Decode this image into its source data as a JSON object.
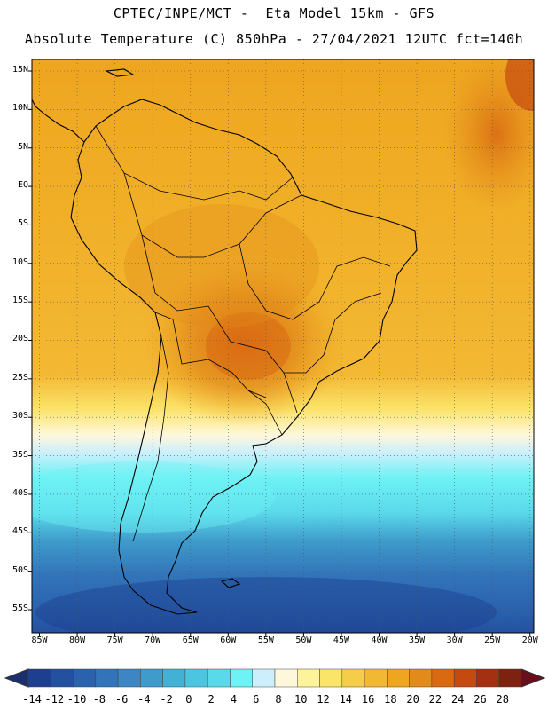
{
  "header": {
    "title_line1": "CPTEC/INPE/MCT -  Eta Model 15km - GFS",
    "title_line2": "Absolute Temperature (C) 850hPa - 27/04/2021 12UTC fct=140h"
  },
  "map": {
    "lat_labels": [
      "15N",
      "10N",
      "5N",
      "EQ",
      "5S",
      "10S",
      "15S",
      "20S",
      "25S",
      "30S",
      "35S",
      "40S",
      "45S",
      "50S",
      "55S"
    ],
    "lon_labels": [
      "85W",
      "80W",
      "75W",
      "70W",
      "65W",
      "60W",
      "55W",
      "50W",
      "45W",
      "40W",
      "35W",
      "30W",
      "25W",
      "20W"
    ],
    "lat_values": [
      15,
      10,
      5,
      0,
      -5,
      -10,
      -15,
      -20,
      -25,
      -30,
      -35,
      -40,
      -45,
      -50,
      -55
    ],
    "lon_values": [
      -85,
      -80,
      -75,
      -70,
      -65,
      -60,
      -55,
      -50,
      -45,
      -40,
      -35,
      -30,
      -25,
      -20
    ],
    "lat_range": [
      -58,
      16.5
    ],
    "lon_range": [
      -86,
      -19.5
    ],
    "temperature_bands": [
      {
        "lat_from": 16.5,
        "lat_to": 8,
        "range_c": "18 to 20"
      },
      {
        "lat_from": 8,
        "lat_to": -29,
        "range_c": "16 to 18"
      },
      {
        "lat_from": -29,
        "lat_to": -33,
        "range_c": "8 to 12"
      },
      {
        "lat_from": -33,
        "lat_to": -36,
        "range_c": "4 to 6"
      },
      {
        "lat_from": -36,
        "lat_to": -45,
        "range_c": "0 to 4"
      },
      {
        "lat_from": -45,
        "lat_to": -52,
        "range_c": "-6 to -2"
      },
      {
        "lat_from": -52,
        "lat_to": -58,
        "range_c": "-12 to -8"
      }
    ],
    "warm_core": {
      "center_lat": -20,
      "center_lon": -55,
      "range_c": "20 to 24"
    }
  },
  "colorbar": {
    "labels": [
      "-14",
      "-12",
      "-10",
      "-8",
      "-6",
      "-4",
      "-2",
      "0",
      "2",
      "4",
      "6",
      "8",
      "10",
      "12",
      "14",
      "16",
      "18",
      "20",
      "22",
      "24",
      "26",
      "28"
    ],
    "colors": [
      "#1d3f8f",
      "#23519f",
      "#2a62ae",
      "#3274b9",
      "#3b86c3",
      "#3f9bcb",
      "#43b1d6",
      "#4cc6e0",
      "#5ad9ea",
      "#6ef2f5",
      "#cdeffb",
      "#fff7dc",
      "#fdf39a",
      "#fbe46a",
      "#f6cd4a",
      "#f3b833",
      "#eea51f",
      "#e28a1b",
      "#d96a12",
      "#c44a10",
      "#a33010",
      "#7e2210"
    ],
    "below_color": "#1b2f6e",
    "above_color": "#6a0e1e"
  }
}
